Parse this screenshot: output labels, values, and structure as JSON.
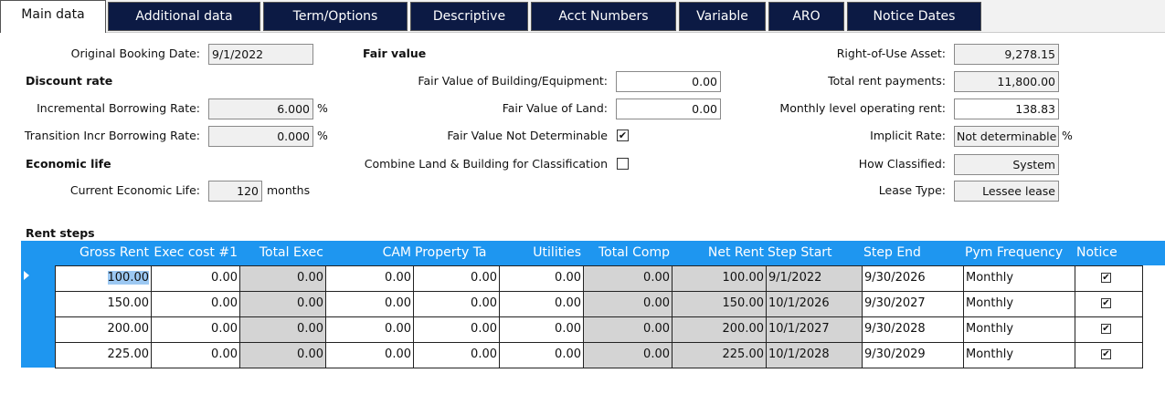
{
  "tabs": [
    "Main data",
    "Additional data",
    "Term/Options",
    "Descriptive",
    "Acct Numbers",
    "Variable",
    "ARO",
    "Notice Dates"
  ],
  "left": {
    "original_booking_date": {
      "label": "Original Booking Date:",
      "value": "9/1/2022"
    },
    "discount_rate_heading": "Discount rate",
    "incremental_borrowing_rate": {
      "label": "Incremental Borrowing Rate:",
      "value": "6.000",
      "unit": "%"
    },
    "transition_incr_borrowing_rate": {
      "label": "Transition Incr Borrowing Rate:",
      "value": "0.000",
      "unit": "%"
    },
    "economic_life_heading": "Economic life",
    "current_economic_life": {
      "label": "Current Economic Life:",
      "value": "120",
      "unit": "months"
    }
  },
  "middle": {
    "fair_value_heading": "Fair value",
    "fair_value_building": {
      "label": "Fair Value of Building/Equipment:",
      "value": "0.00"
    },
    "fair_value_land": {
      "label": "Fair Value of Land:",
      "value": "0.00"
    },
    "fair_value_not_determinable": {
      "label": "Fair Value Not Determinable",
      "checked": true
    },
    "combine_land_building": {
      "label": "Combine Land & Building for Classification",
      "checked": false
    }
  },
  "right": {
    "right_of_use_asset": {
      "label": "Right-of-Use Asset:",
      "value": "9,278.15"
    },
    "total_rent_payments": {
      "label": "Total rent payments:",
      "value": "11,800.00"
    },
    "monthly_level_operating_rent": {
      "label": "Monthly level operating rent:",
      "value": "138.83"
    },
    "implicit_rate": {
      "label": "Implicit Rate:",
      "value": "Not determinable",
      "unit": "%"
    },
    "how_classified": {
      "label": "How Classified:",
      "value": "System"
    },
    "lease_type": {
      "label": "Lease Type:",
      "value": "Lessee lease"
    }
  },
  "rent_steps": {
    "title": "Rent steps",
    "columns": [
      "Gross Rent",
      "Exec cost #1",
      "Total Exec",
      "CAM",
      "Property Ta",
      "Utilities",
      "Total Comp",
      "Net Rent",
      "Step Start",
      "Step End",
      "Pym Frequency",
      "Notice"
    ],
    "rows": [
      [
        "100.00",
        "0.00",
        "0.00",
        "0.00",
        "0.00",
        "0.00",
        "0.00",
        "100.00",
        "9/1/2022",
        "9/30/2026",
        "Monthly",
        true
      ],
      [
        "150.00",
        "0.00",
        "0.00",
        "0.00",
        "0.00",
        "0.00",
        "0.00",
        "150.00",
        "10/1/2026",
        "9/30/2027",
        "Monthly",
        true
      ],
      [
        "200.00",
        "0.00",
        "0.00",
        "0.00",
        "0.00",
        "0.00",
        "0.00",
        "200.00",
        "10/1/2027",
        "9/30/2028",
        "Monthly",
        true
      ],
      [
        "225.00",
        "0.00",
        "0.00",
        "0.00",
        "0.00",
        "0.00",
        "0.00",
        "225.00",
        "10/1/2028",
        "9/30/2029",
        "Monthly",
        true
      ]
    ]
  }
}
